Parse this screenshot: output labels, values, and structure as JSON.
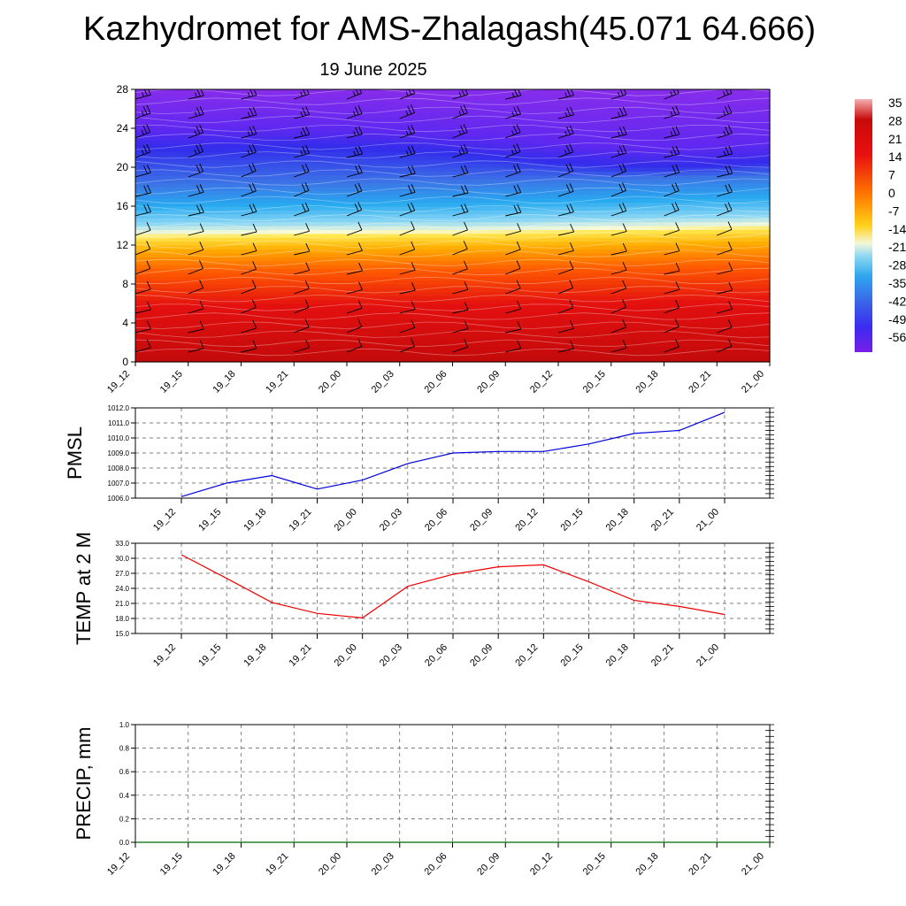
{
  "title": "Kazhydromet for AMS-Zhalagash(45.071 64.666)",
  "subtitle": "19 June 2025",
  "chart_data": [
    {
      "type": "heatmap",
      "name": "temperature-cross-section",
      "x_ticks": [
        "19_12",
        "19_15",
        "19_18",
        "19_21",
        "20_00",
        "20_03",
        "20_06",
        "20_09",
        "20_12",
        "20_15",
        "20_18",
        "20_21",
        "21_00"
      ],
      "y_ticks": [
        "0",
        "4",
        "8",
        "12",
        "16",
        "20",
        "24",
        "28"
      ],
      "ylim": [
        0,
        28
      ],
      "colorbar_labels": [
        "35",
        "28",
        "21",
        "14",
        "7",
        "0",
        "-7",
        "-14",
        "-21",
        "-28",
        "-35",
        "-42",
        "-49",
        "-56"
      ],
      "freezing_level_by_time": [
        12.8,
        12.9,
        12.9,
        13.0,
        13.0,
        13.1,
        13.1,
        13.2,
        13.3,
        13.4,
        13.5,
        13.6,
        13.7
      ],
      "tropopause_by_time": [
        22.5,
        22.4,
        22.5,
        22.6,
        22.5,
        22.3,
        22.0,
        21.5,
        21.0,
        20.6,
        20.5,
        20.7,
        21.0
      ],
      "wind_barbs": true
    },
    {
      "type": "line",
      "name": "pmsl",
      "ylabel": "PMSL",
      "x": [
        "19_12",
        "19_15",
        "19_18",
        "19_21",
        "20_00",
        "20_03",
        "20_06",
        "20_09",
        "20_12",
        "20_15",
        "20_18",
        "20_21",
        "21_00"
      ],
      "values": [
        1006.1,
        1007.0,
        1007.5,
        1006.6,
        1007.2,
        1008.3,
        1009.0,
        1009.1,
        1009.1,
        1009.6,
        1010.3,
        1010.5,
        1011.7
      ],
      "ylim": [
        1006.0,
        1012.0
      ],
      "y_ticks": [
        "1006.0",
        "1007.0",
        "1008.0",
        "1009.0",
        "1010.0",
        "1011.0",
        "1012.0"
      ],
      "color": "#0000dd"
    },
    {
      "type": "line",
      "name": "temp-2m",
      "ylabel": "TEMP at 2 M",
      "x": [
        "19_12",
        "19_15",
        "19_18",
        "19_21",
        "20_00",
        "20_03",
        "20_06",
        "20_09",
        "20_12",
        "20_15",
        "20_18",
        "20_21",
        "21_00"
      ],
      "values": [
        30.7,
        26.0,
        21.2,
        19.0,
        18.1,
        24.4,
        26.8,
        28.3,
        28.7,
        25.3,
        21.6,
        20.4,
        18.8
      ],
      "ylim": [
        15.0,
        33.0
      ],
      "y_ticks": [
        "15.0",
        "18.0",
        "21.0",
        "24.0",
        "27.0",
        "30.0",
        "33.0"
      ],
      "color": "#ee0000"
    },
    {
      "type": "line",
      "name": "precip",
      "ylabel": "PRECIP, mm",
      "x": [
        "19_12",
        "19_15",
        "19_18",
        "19_21",
        "20_00",
        "20_03",
        "20_06",
        "20_09",
        "20_12",
        "20_15",
        "20_18",
        "20_21",
        "21_00"
      ],
      "values": [
        0,
        0,
        0,
        0,
        0,
        0,
        0,
        0,
        0,
        0,
        0,
        0,
        0
      ],
      "ylim": [
        0.0,
        1.0
      ],
      "y_ticks": [
        "0.0",
        "0.2",
        "0.4",
        "0.6",
        "0.8",
        "1.0"
      ],
      "color": "#006600"
    }
  ]
}
